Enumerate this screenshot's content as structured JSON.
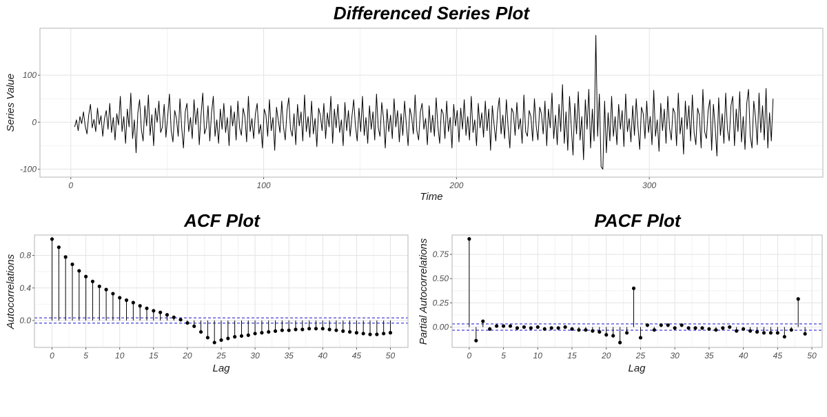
{
  "chart_data": [
    {
      "type": "line",
      "title": "Differenced Series Plot",
      "xlabel": "Time",
      "ylabel": "Series Value",
      "xlim": [
        -16,
        390
      ],
      "ylim": [
        -117,
        200
      ],
      "x_ticks": [
        0,
        100,
        200,
        300
      ],
      "y_ticks": [
        -100,
        0,
        100
      ],
      "x_tick_labels": [
        "0",
        "100",
        "200",
        "300"
      ],
      "y_tick_labels": [
        "-100",
        "0",
        "100"
      ],
      "grid": true,
      "series": [
        {
          "x_start": 2,
          "x_step": 0.1,
          "values": [
            -10,
            5,
            -18,
            12,
            -3,
            22,
            -8,
            -25,
            15,
            38,
            -12,
            6,
            -20,
            30,
            -5,
            14,
            -30,
            8,
            25,
            -15,
            40,
            -22,
            10,
            -38,
            18,
            -6,
            55,
            -20,
            12,
            -45,
            28,
            -10,
            62,
            -35,
            5,
            -65,
            20,
            48,
            -15,
            -40,
            35,
            -8,
            58,
            -28,
            16,
            -50,
            30,
            0,
            45,
            -22,
            -10,
            38,
            -32,
            12,
            60,
            -18,
            -42,
            25,
            8,
            -30,
            50,
            -12,
            -55,
            22,
            40,
            -20,
            10,
            -35,
            48,
            -5,
            30,
            -48,
            15,
            62,
            -25,
            -12,
            35,
            -40,
            20,
            55,
            -30,
            5,
            -45,
            28,
            -15,
            40,
            -22,
            10,
            -50,
            35,
            -8,
            22,
            -38,
            45,
            -12,
            -28,
            30,
            12,
            -42,
            55,
            -20,
            8,
            -35,
            18,
            40,
            -25,
            -5,
            -55,
            28,
            15,
            -30,
            48,
            -18,
            10,
            -60,
            32,
            5,
            -22,
            45,
            -10,
            -38,
            25,
            52,
            -15,
            -30,
            18,
            -48,
            38,
            -8,
            22,
            -40,
            58,
            -20,
            12,
            -32,
            45,
            -25,
            8,
            -52,
            30,
            15,
            -18,
            40,
            -35,
            20,
            -10,
            55,
            -45,
            28,
            -12,
            38,
            -22,
            5,
            -50,
            42,
            -18,
            25,
            -30,
            12,
            48,
            -8,
            -40,
            30,
            -20,
            55,
            -28,
            10,
            -45,
            35,
            -15,
            22,
            -38,
            60,
            -12,
            -30,
            42,
            8,
            -55,
            28,
            -20,
            15,
            -35,
            50,
            -10,
            25,
            -42,
            18,
            -28,
            45,
            -5,
            -50,
            30,
            12,
            -25,
            58,
            -18,
            -38,
            22,
            40,
            -15,
            8,
            -48,
            35,
            -22,
            15,
            -30,
            52,
            -10,
            -45,
            28,
            18,
            -35,
            45,
            -20,
            10,
            -55,
            38,
            -8,
            25,
            -42,
            30,
            -15,
            48,
            -28,
            12,
            -38,
            55,
            -22,
            5,
            -50,
            40,
            -12,
            20,
            -32,
            45,
            -18,
            28,
            -60,
            35,
            -5,
            -40,
            22,
            52,
            -25,
            15,
            -35,
            48,
            -10,
            -55,
            30,
            20,
            -28,
            42,
            -15,
            8,
            -45,
            58,
            -20,
            -30,
            25,
            12,
            -40,
            50,
            -8,
            -38,
            32,
            18,
            -25,
            45,
            -50,
            28,
            -12,
            62,
            -35,
            15,
            -48,
            38,
            -20,
            80,
            -45,
            22,
            -60,
            55,
            -10,
            -70,
            40,
            -25,
            65,
            -38,
            12,
            -80,
            48,
            -15,
            70,
            -55,
            28,
            -40,
            185,
            -30,
            60,
            -95,
            -100,
            45,
            -65,
            20,
            -40,
            55,
            -30,
            12,
            -48,
            38,
            -15,
            25,
            -52,
            60,
            -20,
            8,
            -42,
            35,
            -28,
            50,
            -10,
            -58,
            32,
            18,
            -35,
            45,
            -22,
            12,
            -48,
            68,
            -30,
            5,
            -62,
            40,
            -18,
            28,
            -45,
            55,
            -12,
            -38,
            30,
            20,
            -50,
            62,
            -25,
            10,
            -68,
            45,
            -15,
            35,
            -40,
            58,
            -22,
            -48,
            30,
            15,
            -55,
            70,
            -20,
            -35,
            25,
            48,
            -60,
            38,
            -10,
            -72,
            52,
            -28,
            18,
            -45,
            62,
            -15,
            -40,
            35,
            55,
            -50,
            28,
            -20,
            65,
            -42,
            12,
            -58,
            40,
            70,
            -30,
            -55,
            45,
            10,
            -48,
            62,
            -22,
            35,
            -38,
            72,
            -55,
            20,
            -40,
            50
          ]
        }
      ]
    },
    {
      "type": "bar",
      "title": "ACF Plot",
      "xlabel": "Lag",
      "ylabel": "Autocorrelations",
      "xlim": [
        -2.6,
        52.6
      ],
      "ylim": [
        -0.33,
        1.05
      ],
      "x_ticks": [
        0,
        5,
        10,
        15,
        20,
        25,
        30,
        35,
        40,
        45,
        50
      ],
      "y_ticks": [
        0.0,
        0.4,
        0.8
      ],
      "x_tick_labels": [
        "0",
        "5",
        "10",
        "15",
        "20",
        "25",
        "30",
        "35",
        "40",
        "45",
        "50"
      ],
      "y_tick_labels": [
        "0.0",
        "0.4",
        "0.8"
      ],
      "grid": true,
      "confidence_band": [
        0.0325,
        -0.0325
      ],
      "lags": [
        0,
        1,
        2,
        3,
        4,
        5,
        6,
        7,
        8,
        9,
        10,
        11,
        12,
        13,
        14,
        15,
        16,
        17,
        18,
        19,
        20,
        21,
        22,
        23,
        24,
        25,
        26,
        27,
        28,
        29,
        30,
        31,
        32,
        33,
        34,
        35,
        36,
        37,
        38,
        39,
        40,
        41,
        42,
        43,
        44,
        45,
        46,
        47,
        48,
        49,
        50
      ],
      "values": [
        1.0,
        0.9,
        0.78,
        0.69,
        0.61,
        0.54,
        0.48,
        0.42,
        0.38,
        0.33,
        0.28,
        0.25,
        0.22,
        0.18,
        0.15,
        0.12,
        0.1,
        0.07,
        0.04,
        0.01,
        -0.03,
        -0.07,
        -0.14,
        -0.21,
        -0.27,
        -0.24,
        -0.22,
        -0.2,
        -0.19,
        -0.18,
        -0.16,
        -0.15,
        -0.14,
        -0.13,
        -0.12,
        -0.12,
        -0.11,
        -0.11,
        -0.1,
        -0.1,
        -0.1,
        -0.11,
        -0.12,
        -0.13,
        -0.14,
        -0.15,
        -0.16,
        -0.17,
        -0.17,
        -0.16,
        -0.15
      ]
    },
    {
      "type": "bar",
      "title": "PACF Plot",
      "xlabel": "Lag",
      "ylabel": "Partial Autocorrelations",
      "xlim": [
        -2.5,
        51.5
      ],
      "ylim": [
        -0.21,
        0.95
      ],
      "x_ticks": [
        0,
        5,
        10,
        15,
        20,
        25,
        30,
        35,
        40,
        45,
        50
      ],
      "y_ticks": [
        0.0,
        0.25,
        0.5,
        0.75
      ],
      "x_tick_labels": [
        "0",
        "5",
        "10",
        "15",
        "20",
        "25",
        "30",
        "35",
        "40",
        "45",
        "50"
      ],
      "y_tick_labels": [
        "0.00",
        "0.25",
        "0.50",
        "0.75"
      ],
      "grid": true,
      "confidence_band": [
        0.0325,
        -0.0325
      ],
      "lags": [
        0,
        1,
        2,
        3,
        4,
        5,
        6,
        7,
        8,
        9,
        10,
        11,
        12,
        13,
        14,
        15,
        16,
        17,
        18,
        19,
        20,
        21,
        22,
        23,
        24,
        25,
        26,
        27,
        28,
        29,
        30,
        31,
        32,
        33,
        34,
        35,
        36,
        37,
        38,
        39,
        40,
        41,
        42,
        43,
        44,
        45,
        46,
        47,
        48,
        49
      ],
      "values": [
        0.91,
        -0.14,
        0.06,
        -0.02,
        0.01,
        0.01,
        0.01,
        -0.01,
        0.0,
        -0.01,
        0.0,
        -0.02,
        -0.01,
        -0.01,
        0.0,
        -0.02,
        -0.03,
        -0.03,
        -0.04,
        -0.05,
        -0.08,
        -0.09,
        -0.16,
        -0.06,
        0.4,
        -0.11,
        0.02,
        -0.03,
        0.02,
        0.02,
        -0.01,
        0.02,
        -0.01,
        -0.01,
        -0.01,
        -0.02,
        -0.03,
        -0.01,
        0.0,
        -0.04,
        -0.02,
        -0.04,
        -0.05,
        -0.06,
        -0.06,
        -0.06,
        -0.1,
        -0.03,
        0.29,
        -0.07
      ]
    }
  ]
}
